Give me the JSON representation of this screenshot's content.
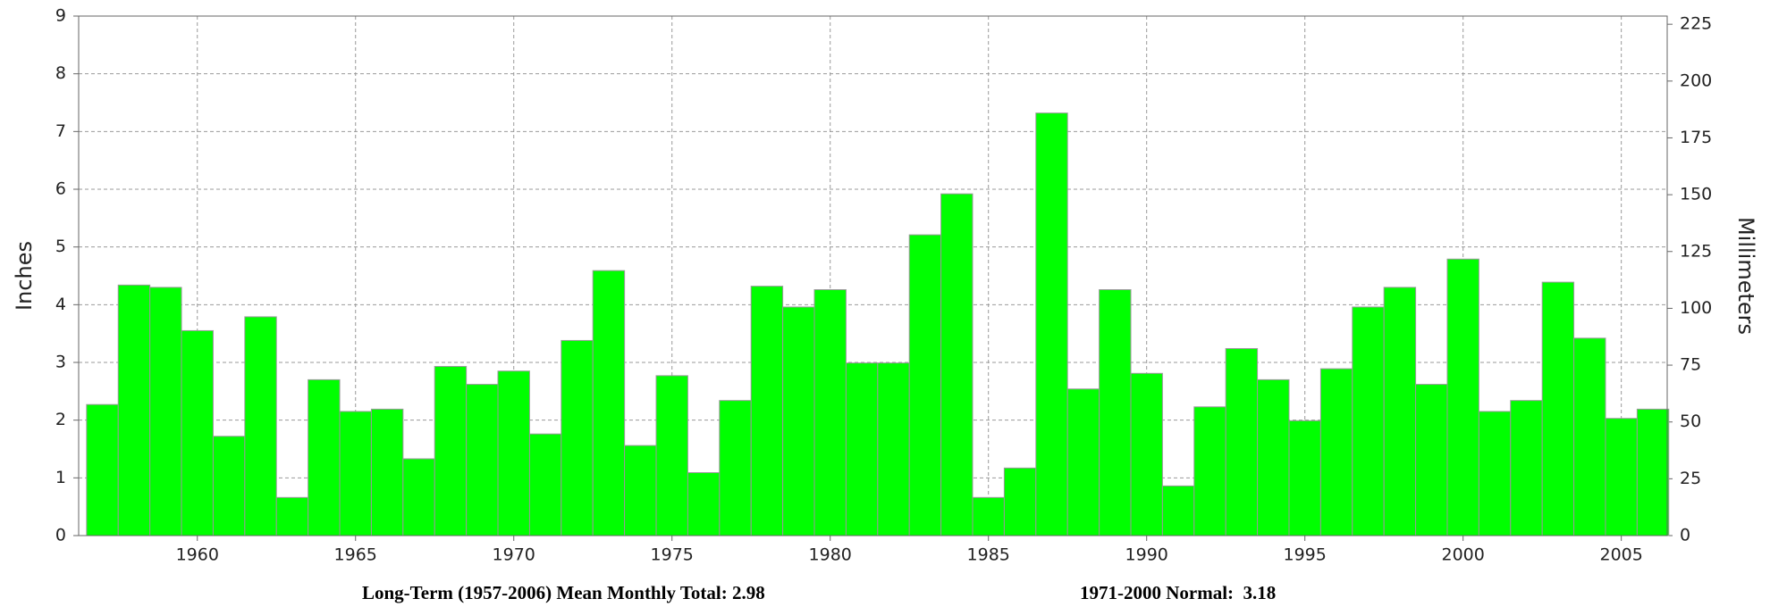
{
  "chart_data": {
    "type": "bar",
    "y_label": "Inches",
    "y2_label": "Millimeters",
    "annotations": [
      "Long-Term (1957-2006) Mean Monthly Total: 2.98",
      "1971-2000 Normal:  3.18"
    ],
    "x": [
      1957,
      1958,
      1959,
      1960,
      1961,
      1962,
      1963,
      1964,
      1965,
      1966,
      1967,
      1968,
      1969,
      1970,
      1971,
      1972,
      1973,
      1974,
      1975,
      1976,
      1977,
      1978,
      1979,
      1980,
      1981,
      1982,
      1983,
      1984,
      1985,
      1986,
      1987,
      1988,
      1989,
      1990,
      1991,
      1992,
      1993,
      1994,
      1995,
      1996,
      1997,
      1998,
      1999,
      2000,
      2001,
      2002,
      2003,
      2004,
      2005,
      2006
    ],
    "values": [
      2.27,
      4.34,
      4.3,
      3.55,
      1.72,
      3.79,
      0.66,
      2.7,
      2.15,
      2.19,
      1.33,
      2.93,
      2.62,
      2.85,
      1.76,
      3.38,
      4.59,
      1.56,
      2.77,
      1.09,
      2.34,
      4.32,
      3.96,
      4.26,
      2.99,
      2.99,
      5.21,
      5.92,
      0.66,
      1.17,
      7.32,
      2.54,
      4.26,
      2.81,
      0.86,
      2.23,
      3.24,
      2.7,
      1.99,
      2.89,
      3.96,
      4.3,
      2.62,
      4.79,
      2.15,
      2.34,
      4.39,
      3.42,
      2.03,
      2.19
    ],
    "color": "#00ff00",
    "xlim": [
      1956.25,
      2006.45
    ],
    "xticks": [
      1960,
      1965,
      1970,
      1975,
      1980,
      1985,
      1990,
      1995,
      2000,
      2005
    ],
    "ylim": [
      0,
      9
    ],
    "yticks": [
      0,
      1,
      2,
      3,
      4,
      5,
      6,
      7,
      8,
      9
    ],
    "y2lim": [
      0,
      228.6
    ],
    "y2ticks": [
      0,
      25,
      50,
      75,
      100,
      125,
      150,
      175,
      200,
      225
    ],
    "grid": true
  }
}
